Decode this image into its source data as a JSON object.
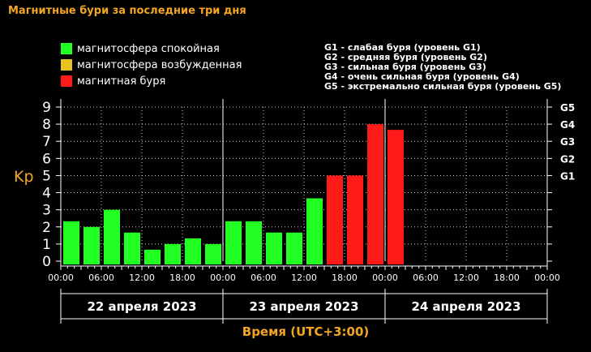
{
  "title": "Магнитные бури за последние три дня",
  "legend": [
    {
      "label": "магнитосфера спокойная",
      "color": "#22ff22"
    },
    {
      "label": "магнитосфера возбужденная",
      "color": "#e6c31e"
    },
    {
      "label": "магнитная буря",
      "color": "#ff1a1a"
    }
  ],
  "g_legend": [
    "G1 - слабая буря (уровень G1)",
    "G2 - средняя буря (уровень G2)",
    "G3 - сильная буря (уровень G3)",
    "G4 - очень сильная буря (уровень G4)",
    "G5 - экстремально сильная буря (уровень G5)"
  ],
  "chart_data": {
    "type": "bar",
    "ylabel": "Kp",
    "xlabel": "Время (UTC+3:00)",
    "ylim": [
      0,
      9
    ],
    "yticks": [
      "0",
      "1",
      "2",
      "3",
      "4",
      "5",
      "6",
      "7",
      "8",
      "9"
    ],
    "g_axis": [
      {
        "label": "G1",
        "kp": 5
      },
      {
        "label": "G2",
        "kp": 6
      },
      {
        "label": "G3",
        "kp": 7
      },
      {
        "label": "G4",
        "kp": 8
      },
      {
        "label": "G5",
        "kp": 9
      }
    ],
    "x_ticks": [
      "00:00",
      "06:00",
      "12:00",
      "18:00",
      "00:00",
      "06:00",
      "12:00",
      "18:00",
      "00:00",
      "06:00",
      "12:00",
      "18:00",
      "00:00"
    ],
    "days": [
      "22 апреля 2023",
      "23 апреля 2023",
      "24 апреля 2023"
    ],
    "grid": true,
    "bars": [
      {
        "kp": 2.33,
        "color": "#22ff22"
      },
      {
        "kp": 2.0,
        "color": "#22ff22"
      },
      {
        "kp": 3.0,
        "color": "#22ff22"
      },
      {
        "kp": 1.67,
        "color": "#22ff22"
      },
      {
        "kp": 0.67,
        "color": "#22ff22"
      },
      {
        "kp": 1.0,
        "color": "#22ff22"
      },
      {
        "kp": 1.33,
        "color": "#22ff22"
      },
      {
        "kp": 1.0,
        "color": "#22ff22"
      },
      {
        "kp": 2.33,
        "color": "#22ff22"
      },
      {
        "kp": 2.33,
        "color": "#22ff22"
      },
      {
        "kp": 1.67,
        "color": "#22ff22"
      },
      {
        "kp": 1.67,
        "color": "#22ff22"
      },
      {
        "kp": 3.67,
        "color": "#22ff22"
      },
      {
        "kp": 5.0,
        "color": "#ff1a1a"
      },
      {
        "kp": 5.0,
        "color": "#ff1a1a"
      },
      {
        "kp": 8.0,
        "color": "#ff1a1a"
      },
      {
        "kp": 7.67,
        "color": "#ff1a1a"
      }
    ]
  }
}
